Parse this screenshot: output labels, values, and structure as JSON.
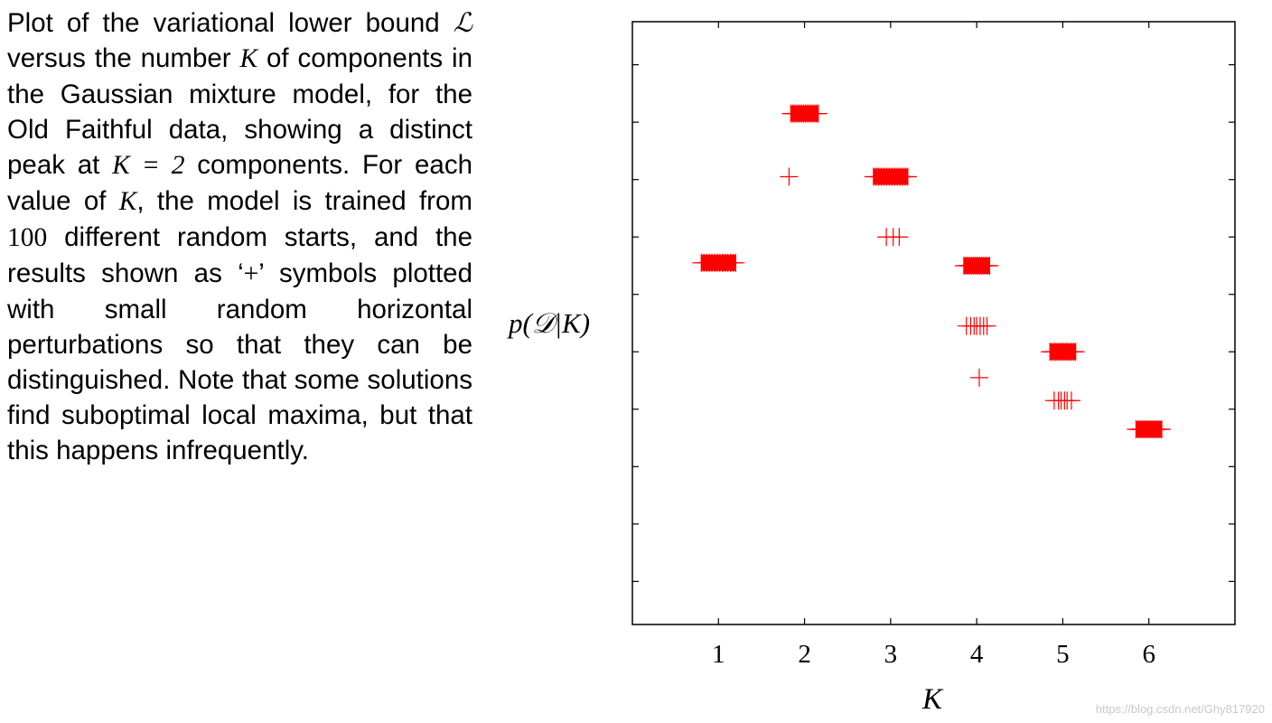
{
  "caption": {
    "t1": "Plot of the variational lower bound",
    "L": "ℒ",
    "t2": " versus the number ",
    "K": "K",
    "t3": " of components in the Gaussian mixture model, for the Old Faithful data, showing a distinct peak at ",
    "eq": "K = 2",
    "t4": " components. For each value of ",
    "t5": ", the model is trained from ",
    "n100": "100",
    "t6": " different random starts, and the results shown as ‘",
    "plus": "+",
    "t7": "’ symbols plotted with small random horizontal perturbations so that they can be distinguished. Note that some solutions find suboptimal local maxima, but that this happens infrequently."
  },
  "chart_data": {
    "type": "scatter",
    "marker": "+",
    "color": "#ff0000",
    "xlabel": "K",
    "ylabel": "p(𝒟|K)",
    "xlim": [
      0,
      7
    ],
    "ylim": [
      0,
      10.5
    ],
    "xticks": [
      1,
      2,
      3,
      4,
      5,
      6
    ],
    "yticks": [
      0.75,
      1.75,
      2.75,
      3.75,
      4.75,
      5.75,
      6.75,
      7.75,
      8.75,
      9.75
    ],
    "grid": false,
    "clusters": [
      {
        "k": 1,
        "y": 6.3,
        "dense": true,
        "spread": 0.2
      },
      {
        "k": 2,
        "y": 8.9,
        "dense": true,
        "spread": 0.16
      },
      {
        "k": 2,
        "y": 7.8,
        "dense": false,
        "offsets": [
          -0.18
        ]
      },
      {
        "k": 3,
        "y": 7.8,
        "dense": true,
        "spread": 0.2
      },
      {
        "k": 3,
        "y": 6.75,
        "dense": false,
        "offsets": [
          -0.05,
          0.03,
          0.1
        ]
      },
      {
        "k": 4,
        "y": 6.25,
        "dense": true,
        "spread": 0.15
      },
      {
        "k": 4,
        "y": 5.2,
        "dense": false,
        "offsets": [
          -0.12,
          -0.07,
          -0.03,
          0.0,
          0.04,
          0.08,
          0.12
        ]
      },
      {
        "k": 4,
        "y": 4.3,
        "dense": false,
        "offsets": [
          0.03
        ]
      },
      {
        "k": 5,
        "y": 4.75,
        "dense": true,
        "spread": 0.15
      },
      {
        "k": 5,
        "y": 3.9,
        "dense": false,
        "offsets": [
          -0.1,
          -0.05,
          -0.02,
          0.02,
          0.05,
          0.1
        ]
      },
      {
        "k": 6,
        "y": 3.4,
        "dense": true,
        "spread": 0.15
      }
    ]
  },
  "watermark": "https://blog.csdn.net/Ghy817920"
}
